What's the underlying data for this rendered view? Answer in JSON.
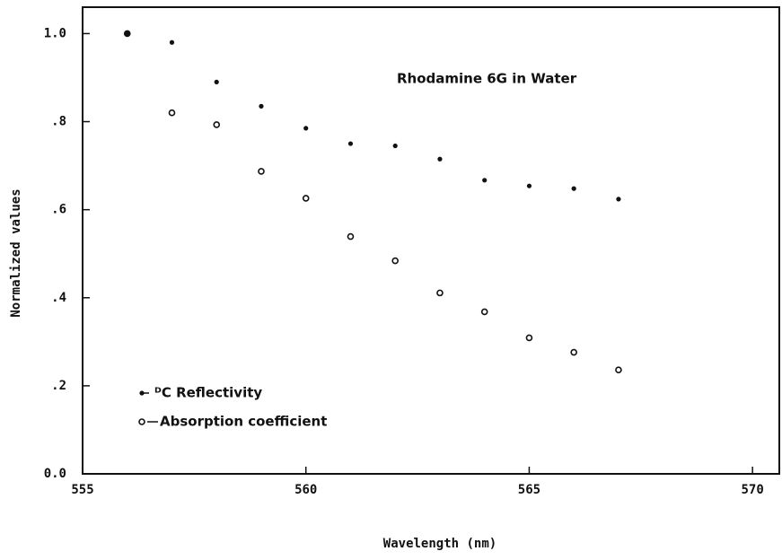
{
  "chart_data": {
    "type": "scatter",
    "annotation": "Rhodamine 6G in Water",
    "xlabel": "Wavelength (nm)",
    "ylabel": "Normalized values",
    "xlim": [
      555,
      570.6
    ],
    "ylim": [
      0,
      1.06
    ],
    "xticks": [
      555,
      560,
      565,
      570
    ],
    "yticks": [
      {
        "value": 0,
        "label": "0.0"
      },
      {
        "value": 0.2,
        "label": ".2"
      },
      {
        "value": 0.4,
        "label": ".4"
      },
      {
        "value": 0.6,
        "label": ".6"
      },
      {
        "value": 0.8,
        "label": ".8"
      },
      {
        "value": 1.0,
        "label": "1.0"
      }
    ],
    "series": [
      {
        "name": "ᴰC Reflectivity",
        "color": "#111111",
        "marker": "dot",
        "x": [
          556,
          557,
          558,
          559,
          560,
          561,
          562,
          563,
          564,
          565,
          566,
          567
        ],
        "values": [
          1.0,
          0.98,
          0.89,
          0.835,
          0.785,
          0.75,
          0.745,
          0.715,
          0.667,
          0.654,
          0.648,
          0.624
        ]
      },
      {
        "name": "Absorption coefficient",
        "color": "#111111",
        "marker": "circle",
        "x": [
          556,
          557,
          558,
          559,
          560,
          561,
          562,
          563,
          564,
          565,
          566,
          567
        ],
        "values": [
          1.0,
          0.82,
          0.793,
          0.687,
          0.626,
          0.539,
          0.484,
          0.411,
          0.368,
          0.309,
          0.276,
          0.236
        ]
      }
    ]
  }
}
